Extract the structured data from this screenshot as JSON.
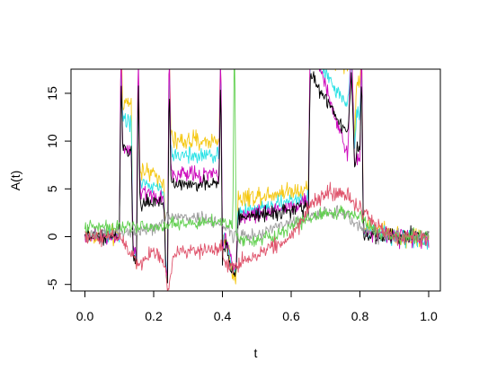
{
  "chart_data": {
    "type": "line",
    "title": "",
    "xlabel": "t",
    "ylabel": "A(t)",
    "xlim": [
      0,
      1
    ],
    "ylim": [
      -5,
      17
    ],
    "x_ticks": [
      0.0,
      0.2,
      0.4,
      0.6,
      0.8,
      1.0
    ],
    "x_tick_labels": [
      "0.0",
      "0.2",
      "0.4",
      "0.6",
      "0.8",
      "1.0"
    ],
    "y_ticks": [
      -5,
      0,
      5,
      10,
      15
    ],
    "y_tick_labels": [
      "-5",
      "0",
      "5",
      "10",
      "15"
    ],
    "grid": false,
    "legend": "none",
    "series": [
      {
        "color": "#F5C710",
        "noise": 1.3,
        "x": [
          0.0,
          0.1,
          0.105,
          0.11,
          0.135,
          0.14,
          0.15,
          0.155,
          0.16,
          0.23,
          0.235,
          0.24,
          0.245,
          0.25,
          0.255,
          0.39,
          0.395,
          0.4,
          0.41,
          0.43,
          0.44,
          0.445,
          0.64,
          0.65,
          0.655,
          0.76,
          0.765,
          0.775,
          0.785,
          0.79,
          0.8,
          0.805,
          0.81,
          1.0
        ],
        "y": [
          0,
          0,
          20,
          14,
          14,
          -2,
          -3,
          20,
          7,
          6,
          -3,
          -6,
          20,
          11,
          10,
          10,
          20,
          -1,
          0,
          -4,
          -4,
          4,
          5,
          5,
          20,
          18,
          18,
          20,
          10,
          16,
          16,
          20,
          1,
          -0.5
        ]
      },
      {
        "color": "#28E2E5",
        "noise": 1.1,
        "x": [
          0.0,
          0.1,
          0.105,
          0.11,
          0.135,
          0.14,
          0.15,
          0.155,
          0.16,
          0.23,
          0.235,
          0.24,
          0.245,
          0.25,
          0.255,
          0.39,
          0.395,
          0.4,
          0.41,
          0.43,
          0.44,
          0.445,
          0.64,
          0.65,
          0.655,
          0.76,
          0.765,
          0.775,
          0.785,
          0.79,
          0.8,
          0.805,
          0.81,
          1.0
        ],
        "y": [
          0,
          0,
          19,
          12,
          12,
          -1.5,
          -2.5,
          19,
          5.5,
          5,
          -3,
          -5,
          19,
          9,
          8.5,
          8.5,
          19,
          -1,
          0,
          -3.5,
          -3.5,
          2.5,
          4,
          4,
          19,
          14,
          14,
          19,
          9,
          13,
          13,
          19,
          0.5,
          -0.5
        ]
      },
      {
        "color": "#CD0BBC",
        "noise": 1.1,
        "x": [
          0.0,
          0.1,
          0.105,
          0.11,
          0.135,
          0.14,
          0.15,
          0.155,
          0.16,
          0.23,
          0.235,
          0.24,
          0.245,
          0.25,
          0.255,
          0.39,
          0.395,
          0.4,
          0.41,
          0.43,
          0.44,
          0.445,
          0.64,
          0.65,
          0.655,
          0.76,
          0.765,
          0.775,
          0.785,
          0.79,
          0.8,
          0.805,
          0.81,
          1.0
        ],
        "y": [
          0,
          0,
          21,
          9,
          9,
          -1.5,
          -2,
          21,
          4.5,
          4,
          -3,
          -5,
          21,
          7.5,
          6.5,
          6.5,
          21,
          -1,
          0,
          -3,
          -3,
          2,
          3.5,
          3.5,
          21,
          9,
          9,
          21,
          7,
          8,
          8,
          21,
          0.5,
          -0.5
        ]
      },
      {
        "color": "#000000",
        "noise": 1.0,
        "x": [
          0.0,
          0.1,
          0.105,
          0.11,
          0.135,
          0.14,
          0.15,
          0.155,
          0.16,
          0.23,
          0.235,
          0.24,
          0.245,
          0.25,
          0.255,
          0.39,
          0.395,
          0.4,
          0.41,
          0.43,
          0.44,
          0.445,
          0.64,
          0.65,
          0.655,
          0.76,
          0.765,
          0.775,
          0.785,
          0.79,
          0.8,
          0.805,
          0.81,
          1.0
        ],
        "y": [
          0,
          0,
          17,
          9,
          9,
          -2,
          -3,
          17,
          3.5,
          3.5,
          -3,
          -6,
          17,
          6,
          5.5,
          5.5,
          17,
          -2,
          -1,
          -4,
          -4,
          2,
          3,
          3,
          17,
          11,
          11,
          17,
          7,
          9,
          9,
          17,
          0,
          0
        ]
      },
      {
        "color": "#9E9E9E",
        "noise": 0.9,
        "x": [
          0.0,
          0.1,
          0.15,
          0.2,
          0.25,
          0.3,
          0.35,
          0.4,
          0.45,
          0.5,
          0.55,
          0.6,
          0.65,
          0.7,
          0.75,
          0.8,
          0.85,
          0.9,
          0.95,
          1.0
        ],
        "y": [
          0,
          0.5,
          0.5,
          1,
          2,
          2,
          2,
          1,
          0,
          0,
          1,
          1.5,
          2,
          2.5,
          2.5,
          1,
          0,
          0,
          0,
          0
        ]
      },
      {
        "color": "#61D04F",
        "noise": 0.9,
        "x": [
          0.0,
          0.1,
          0.2,
          0.3,
          0.4,
          0.43,
          0.435,
          0.44,
          0.5,
          0.6,
          0.65,
          0.7,
          0.75,
          0.8,
          0.85,
          0.9,
          1.0
        ],
        "y": [
          1,
          1,
          1,
          1.5,
          1.5,
          1,
          22,
          0,
          -0.5,
          1,
          2,
          2.5,
          2.5,
          2,
          0.5,
          0,
          0
        ]
      },
      {
        "color": "#DF536B",
        "noise": 1.1,
        "x": [
          0.0,
          0.1,
          0.12,
          0.13,
          0.14,
          0.15,
          0.2,
          0.235,
          0.24,
          0.26,
          0.3,
          0.35,
          0.4,
          0.42,
          0.45,
          0.5,
          0.55,
          0.6,
          0.65,
          0.7,
          0.75,
          0.8,
          0.85,
          0.9,
          0.95,
          1.0
        ],
        "y": [
          0,
          0,
          -1,
          -2,
          -2,
          -3,
          -1.5,
          -3,
          -6,
          -1.5,
          -1.5,
          -1.5,
          -1.5,
          -3.5,
          -3,
          -2,
          -1,
          0,
          3,
          4.5,
          4.5,
          3,
          1,
          0,
          0,
          0
        ]
      }
    ]
  }
}
